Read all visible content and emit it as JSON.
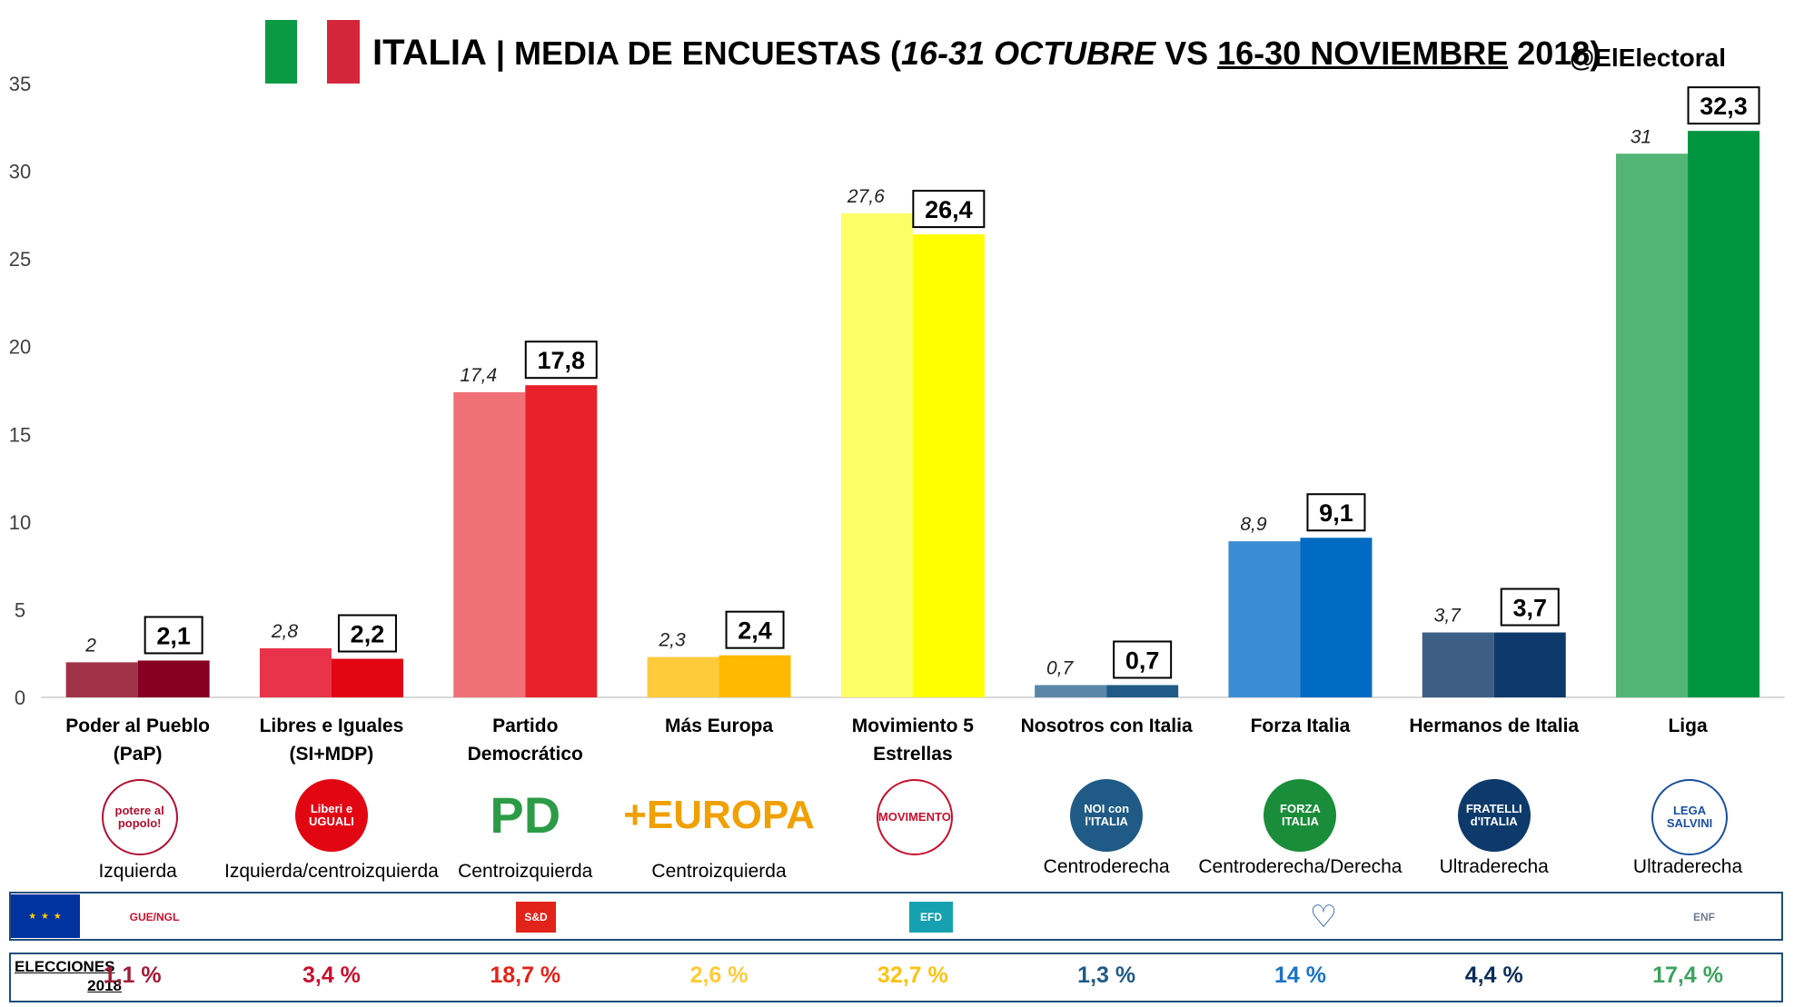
{
  "header": {
    "title_main": "ITALIA",
    "title_sep": " | MEDIA DE ENCUESTAS (",
    "title_period1": "16-31 OCTUBRE",
    "title_vs": " VS ",
    "title_period2": "16-30 NOVIEMBRE",
    "title_end": " 2018)",
    "handle": "@ElElectoral",
    "flag_colors": [
      "#0a9a43",
      "#ffffff",
      "#d4263b"
    ]
  },
  "chart_data": {
    "type": "bar",
    "ylim": [
      0,
      35
    ],
    "yticks": [
      "0",
      "5",
      "10",
      "15",
      "20",
      "25",
      "30",
      "35"
    ],
    "grid": false,
    "categories": [
      "Poder al Pueblo\n(PaP)",
      "Libres e Iguales\n(SI+MDP)",
      "Partido\nDemocrático",
      "Más Europa",
      "Movimiento 5\nEstrellas",
      "Nosotros con Italia",
      "Forza Italia",
      "Hermanos de Italia",
      "Liga"
    ],
    "series": [
      {
        "values": [
          2,
          2.8,
          17.4,
          2.3,
          27.6,
          0.7,
          8.9,
          3.7,
          31
        ],
        "labels": [
          "2",
          "2,8",
          "17,4",
          "2,3",
          "27,6",
          "0,7",
          "8,9",
          "3,7",
          "31"
        ],
        "colors": [
          "#a13349",
          "#e8334a",
          "#f07076",
          "#fecb3a",
          "#fefe66",
          "#5a87a7",
          "#3a8dd4",
          "#3d5f86",
          "#53b576"
        ]
      },
      {
        "values": [
          2.1,
          2.2,
          17.8,
          2.4,
          26.4,
          0.7,
          9.1,
          3.7,
          32.3
        ],
        "labels": [
          "2,1",
          "2,2",
          "17,8",
          "2,4",
          "26,4",
          "0,7",
          "9,1",
          "3,7",
          "32,3"
        ],
        "colors": [
          "#870022",
          "#e20613",
          "#e8212a",
          "#ffb900",
          "#ffff00",
          "#1f5b86",
          "#006bc2",
          "#0d3a6b",
          "#009640"
        ]
      }
    ]
  },
  "parties": [
    {
      "logo": "potere al popolo!",
      "ideology": "Izquierda",
      "logo_color": "#ffffff",
      "text_color": "#b01030"
    },
    {
      "logo": "Liberi e UGUALI",
      "ideology": "Izquierda/centroizquierda",
      "logo_color": "#e20613",
      "text_color": "#ffffff"
    },
    {
      "logo": "PD",
      "ideology": "Centroizquierda",
      "logo_color": "#ffffff",
      "text_color": "#2c9b46"
    },
    {
      "logo": "+EUROPA",
      "ideology": "Centroizquierda",
      "logo_color": "#ffffff",
      "text_color": "#f0a000"
    },
    {
      "logo": "MOVIMENTO",
      "ideology": "",
      "logo_color": "#ffffff",
      "text_color": "#c8102e"
    },
    {
      "logo": "NOI con l'ITALIA",
      "ideology": "Centroderecha",
      "logo_color": "#1f5b86",
      "text_color": "#ffffff"
    },
    {
      "logo": "FORZA ITALIA",
      "ideology": "Centroderecha/Derecha",
      "logo_color": "#1a8d3a",
      "text_color": "#ffffff"
    },
    {
      "logo": "FRATELLI d'ITALIA",
      "ideology": "Ultraderecha",
      "logo_color": "#0d3a6b",
      "text_color": "#ffffff"
    },
    {
      "logo": "LEGA SALVINI",
      "ideology": "Ultraderecha",
      "logo_color": "#ffffff",
      "text_color": "#1b4fa0"
    }
  ],
  "eu_groups": [
    {
      "label": "GUE/NGL",
      "color": "#c8102e",
      "bg": "#ffffff"
    },
    {
      "label": "S&D",
      "color": "#ffffff",
      "bg": "#e2231a"
    },
    {
      "label": "EFD",
      "color": "#ffffff",
      "bg": "#16a1b0"
    },
    {
      "label": "♡",
      "color": "#2a5caa",
      "bg": "#ffffff"
    },
    {
      "label": "ENF",
      "color": "#6f7a90",
      "bg": "#ffffff"
    }
  ],
  "elections": {
    "label_line1": "ELECCIONES",
    "label_line2": "2018",
    "values": [
      "1,1 %",
      "3,4 %",
      "18,7 %",
      "2,6 %",
      "32,7 %",
      "1,3 %",
      "14 %",
      "4,4 %",
      "17,4 %"
    ],
    "colors": [
      "#a11b36",
      "#c8102e",
      "#e2231a",
      "#fecb3a",
      "#fcc214",
      "#1f5b86",
      "#1b73c4",
      "#0d2d5c",
      "#3aa35e"
    ]
  }
}
